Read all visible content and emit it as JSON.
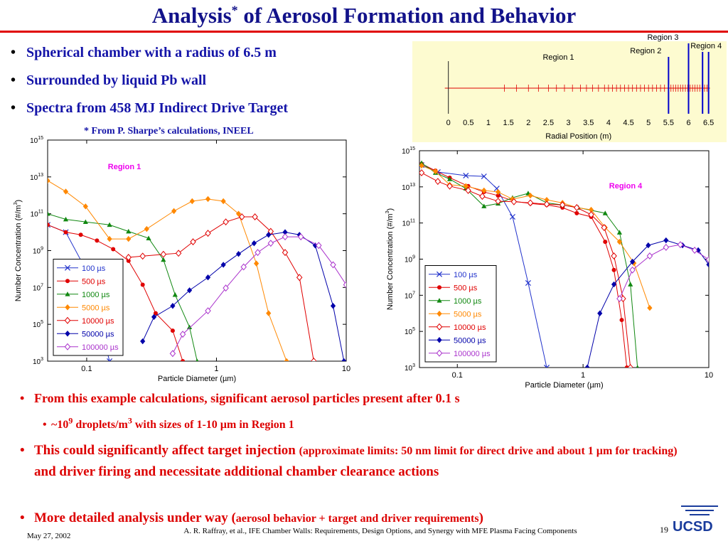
{
  "slide": {
    "title": [
      {
        "text": "Analysis"
      },
      {
        "text": "*",
        "sup": true
      },
      {
        "text": " of Aerosol Formation and Behavior"
      }
    ],
    "bullets": [
      "Spherical chamber with a radius of 6.5 m",
      "Surrounded by liquid Pb wall",
      "Spectra from 458 MJ Indirect Drive Target"
    ],
    "footnote": "* From P. Sharpe’s calculations, INEEL",
    "findings": [
      [
        {
          "text": "From this example calculations, significant aerosol particles present after 0.1 s"
        }
      ],
      [
        {
          "text": "~10"
        },
        {
          "text": "9",
          "sup": true
        },
        {
          "text": " droplets/m"
        },
        {
          "text": "3",
          "sup": true
        },
        {
          "text": " with sizes of 1-10 µm in Region 1"
        }
      ],
      [
        {
          "text": "This could significantly affect target injection "
        },
        {
          "text": "(approximate limits: 50 nm limit for direct drive and about 1 µm for tracking)",
          "small": true
        },
        {
          "text": " and driver firing and necessitate additional chamber clearance actions"
        }
      ],
      [
        {
          "text": "More detailed analysis under way ("
        },
        {
          "text": "aerosol behavior + target and driver requirements",
          "small": true
        },
        {
          "text": ")"
        }
      ]
    ],
    "date": "May 27, 2002",
    "citation": "A. R. Raffray, et al., IFE Chamber Walls: Requirements, Design Options, and Synergy with MFE Plasma Facing Components",
    "page": "19",
    "logo": "UCSD"
  },
  "chart_data": [
    {
      "type": "line",
      "annotation": "Region 1",
      "xlabel": "Particle Diameter (µm)",
      "ylabel": [
        {
          "text": "Number Concentration (#/m"
        },
        {
          "text": "3",
          "sup": true
        },
        {
          "text": ")"
        }
      ],
      "xscale": "log",
      "yscale": "log",
      "xlim": [
        0.05,
        10
      ],
      "ylim": [
        1000.0,
        1000000000000000.0
      ],
      "xticks": [
        0.1,
        1,
        10
      ],
      "yticks": [
        {
          "value": 1000.0,
          "label": "10",
          "sup": "3"
        },
        {
          "value": 100000.0,
          "label": "10",
          "sup": "5"
        },
        {
          "value": 10000000.0,
          "label": "10",
          "sup": "7"
        },
        {
          "value": 1000000000.0,
          "label": "10",
          "sup": "9"
        },
        {
          "value": 100000000000.0,
          "label": "10",
          "sup": "11"
        },
        {
          "value": 10000000000000.0,
          "label": "10",
          "sup": "13"
        },
        {
          "value": 1000000000000000.0,
          "label": "10",
          "sup": "15"
        }
      ],
      "legend": "lower left",
      "annotation_color": "#ee00ee",
      "series": [
        {
          "name": "100 µs",
          "color": "#2233cc",
          "marker": "x",
          "x": [
            0.05,
            0.069,
            0.098,
            0.15
          ],
          "values": [
            25000000000.0,
            10000000000.0,
            100000000.0,
            1000.0
          ]
        },
        {
          "name": "500 µs",
          "color": "#e00000",
          "marker": "circle",
          "x": [
            0.05,
            0.069,
            0.09,
            0.12,
            0.16,
            0.21,
            0.27,
            0.34,
            0.46,
            0.55
          ],
          "values": [
            25000000000.0,
            10000000000.0,
            7200000000.0,
            3500000000.0,
            1200000000.0,
            280000000.0,
            14000000.0,
            400000.0,
            45000.0,
            1000.0
          ]
        },
        {
          "name": "1000 µs",
          "color": "#118811",
          "marker": "triangle",
          "x": [
            0.05,
            0.069,
            0.098,
            0.15,
            0.21,
            0.3,
            0.39,
            0.48,
            0.62,
            0.71
          ],
          "values": [
            100000000000.0,
            50000000000.0,
            36000000000.0,
            25000000000.0,
            11000000000.0,
            4700000000.0,
            320000000.0,
            4000000.0,
            70000.0,
            1000.0
          ]
        },
        {
          "name": "5000 µs",
          "color": "#ff8800",
          "marker": "diamond",
          "x": [
            0.05,
            0.069,
            0.098,
            0.15,
            0.21,
            0.29,
            0.47,
            0.65,
            0.86,
            1.13,
            1.48,
            2.03,
            2.52,
            3.47
          ],
          "values": [
            6300000000000.0,
            1600000000000.0,
            250000000000.0,
            4300000000.0,
            4300000000.0,
            15000000000.0,
            140000000000.0,
            480000000000.0,
            630000000000.0,
            480000000000.0,
            100000000000.0,
            200000000.0,
            400000.0,
            1000.0
          ]
        },
        {
          "name": "10000 µs",
          "color": "#e00000",
          "marker": "diamond-open",
          "x": [
            0.21,
            0.27,
            0.39,
            0.51,
            0.66,
            0.86,
            1.18,
            1.57,
            1.98,
            2.62,
            3.38,
            4.36,
            5.62
          ],
          "values": [
            430000000.0,
            500000000.0,
            630000000.0,
            720000000.0,
            3000000000.0,
            8700000000.0,
            36000000000.0,
            68000000000.0,
            68000000000.0,
            11000000000.0,
            790000000.0,
            35000000.0,
            1000.0
          ]
        },
        {
          "name": "50000 µs",
          "color": "#0000aa",
          "marker": "diamond",
          "x": [
            0.27,
            0.33,
            0.46,
            0.62,
            0.86,
            1.13,
            1.48,
            1.95,
            2.52,
            3.38,
            4.36,
            5.77,
            7.92,
            9.6
          ],
          "values": [
            12000.0,
            250000.0,
            1000000.0,
            7000000.0,
            35000000.0,
            170000000.0,
            660000000.0,
            2500000000.0,
            7200000000.0,
            10000000000.0,
            7200000000.0,
            1900000000.0,
            1000000.0,
            1000.0
          ]
        },
        {
          "name": "100000 µs",
          "color": "#aa33cc",
          "marker": "diamond-open",
          "x": [
            0.46,
            0.55,
            0.86,
            1.18,
            1.62,
            2.08,
            2.62,
            3.38,
            4.47,
            6.14,
            7.92,
            10
          ],
          "values": [
            2600.0,
            29000.0,
            540000.0,
            9300000.0,
            130000000.0,
            790000000.0,
            2500000000.0,
            5600000000.0,
            5600000000.0,
            1900000000.0,
            170000000.0,
            14000000.0
          ]
        }
      ]
    },
    {
      "type": "line",
      "annotation": "Region 4",
      "xlabel": "Particle Diameter (µm)",
      "ylabel": [
        {
          "text": "Number Concentration (#/m"
        },
        {
          "text": "3",
          "sup": true
        },
        {
          "text": ")"
        }
      ],
      "xscale": "log",
      "yscale": "log",
      "xlim": [
        0.05,
        10
      ],
      "ylim": [
        1000.0,
        1000000000000000.0
      ],
      "xticks": [
        0.1,
        1,
        10
      ],
      "yticks": [
        {
          "value": 1000.0,
          "label": "10",
          "sup": "3"
        },
        {
          "value": 100000.0,
          "label": "10",
          "sup": "5"
        },
        {
          "value": 10000000.0,
          "label": "10",
          "sup": "7"
        },
        {
          "value": 1000000000.0,
          "label": "10",
          "sup": "9"
        },
        {
          "value": 100000000000.0,
          "label": "10",
          "sup": "11"
        },
        {
          "value": 10000000000000.0,
          "label": "10",
          "sup": "13"
        },
        {
          "value": 1000000000000000.0,
          "label": "10",
          "sup": "15"
        }
      ],
      "legend": "lower left",
      "annotation_color": "#ee00ee",
      "series": [
        {
          "name": "100 µs",
          "color": "#2233cc",
          "marker": "x",
          "x": [
            0.052,
            0.07,
            0.117,
            0.163,
            0.206,
            0.275,
            0.366,
            0.514
          ],
          "values": [
            160000000000000.0,
            66000000000000.0,
            42000000000000.0,
            38000000000000.0,
            8100000000000.0,
            220000000000.0,
            48000000.0,
            1000.0
          ]
        },
        {
          "name": "500 µs",
          "color": "#e00000",
          "marker": "circle",
          "x": [
            0.052,
            0.067,
            0.087,
            0.122,
            0.163,
            0.211,
            0.282,
            0.381,
            0.514,
            0.686,
            0.891,
            1.16,
            1.5,
            1.76,
            2.03,
            2.23
          ],
          "values": [
            190000000000000.0,
            79000000000000.0,
            32000000000000.0,
            11000000000000.0,
            5200000000000.0,
            3300000000000.0,
            1600000000000.0,
            1200000000000.0,
            1000000000000.0,
            710000000000.0,
            350000000000.0,
            220000000000.0,
            9100000000.0,
            250000000.0,
            430000.0,
            1000.0
          ]
        },
        {
          "name": "1000 µs",
          "color": "#118811",
          "marker": "triangle",
          "x": [
            0.052,
            0.067,
            0.087,
            0.117,
            0.163,
            0.211,
            0.275,
            0.366,
            0.514,
            0.686,
            0.914,
            1.5,
            1.95,
            2.38,
            2.71
          ],
          "values": [
            210000000000000.0,
            60000000000000.0,
            27000000000000.0,
            8100000000000.0,
            850000000000.0,
            1200000000000.0,
            2500000000000.0,
            4400000000000.0,
            1300000000000.0,
            1000000000000.0,
            710000000000.0,
            350000000000.0,
            30000000000.0,
            40000000.0,
            1000.0
          ]
        },
        {
          "name": "5000 µs",
          "color": "#ff8800",
          "marker": "diamond",
          "x": [
            0.052,
            0.067,
            0.087,
            0.117,
            0.163,
            0.211,
            0.275,
            0.381,
            0.514,
            0.686,
            0.891,
            1.16,
            1.5,
            1.95,
            2.54,
            3.39
          ],
          "values": [
            150000000000000.0,
            72000000000000.0,
            13000000000000.0,
            11000000000000.0,
            6300000000000.0,
            5200000000000.0,
            2100000000000.0,
            3300000000000.0,
            1900000000000.0,
            1300000000000.0,
            710000000000.0,
            540000000000.0,
            56000000000.0,
            9100000000.0,
            600000000.0,
            2000000.0
          ]
        },
        {
          "name": "10000 µs",
          "color": "#e00000",
          "marker": "diamond-open",
          "x": [
            0.052,
            0.07,
            0.087,
            0.122,
            0.158,
            0.211,
            0.282,
            0.381,
            0.514,
            0.686,
            0.891,
            1.16,
            1.47,
            1.76,
            2.08,
            2.38
          ],
          "values": [
            60000000000000.0,
            20000000000000.0,
            11000000000000.0,
            6300000000000.0,
            3000000000000.0,
            1600000000000.0,
            1500000000000.0,
            1300000000000.0,
            1100000000000.0,
            1000000000000.0,
            710000000000.0,
            290000000000.0,
            56000000000.0,
            1500000000.0,
            6500000.0,
            1000.0
          ]
        },
        {
          "name": "50000 µs",
          "color": "#0000aa",
          "marker": "diamond",
          "x": [
            1.08,
            1.36,
            1.76,
            2.47,
            3.3,
            4.57,
            6.18,
            8.24,
            10
          ],
          "values": [
            1000.0,
            1000000.0,
            40000000.0,
            720000000.0,
            5800000000.0,
            11000000000.0,
            5800000000.0,
            3100000000.0,
            500000000.0
          ]
        },
        {
          "name": "100000 µs",
          "color": "#aa33cc",
          "marker": "diamond-open",
          "x": [
            1.95,
            2.47,
            3.39,
            4.57,
            5.94,
            7.72,
            10
          ],
          "values": [
            6500000.0,
            250000000.0,
            1500000000.0,
            4500000000.0,
            6300000000.0,
            3100000000.0,
            950000000.0
          ]
        }
      ]
    },
    {
      "type": "mesh",
      "xlabel": "Radial Position (m)",
      "xlim": [
        -0.9,
        6.95
      ],
      "xticks": [
        0,
        0.5,
        1,
        1.5,
        2,
        2.5,
        3,
        3.5,
        4,
        4.5,
        5,
        5.5,
        6,
        6.5
      ],
      "background": "#fdfbd0",
      "mesh_color": "#e00000",
      "region_color": "#0000cc",
      "mesh": [
        1.4,
        1.7,
        2,
        2.25,
        2.5,
        2.7,
        2.9,
        3.1,
        3.3,
        3.45,
        3.6,
        3.75,
        3.9,
        4,
        4.1,
        4.2,
        4.3,
        4.4,
        4.5,
        4.6,
        4.7,
        4.8,
        4.9,
        5,
        5.1,
        5.2,
        5.3,
        5.4,
        5.5,
        5.56,
        5.62,
        5.68,
        5.74,
        5.8,
        5.86,
        5.92,
        5.98,
        6.04,
        6.1,
        6.16,
        6.22,
        6.28,
        6.34,
        6.4,
        6.46,
        6.5
      ],
      "regions": [
        {
          "name": "Region 1",
          "start": 0,
          "end": 5.5
        },
        {
          "name": "Region 2",
          "start": 5.5,
          "end": 6
        },
        {
          "name": "Region 3",
          "start": 6,
          "end": 6.35
        },
        {
          "name": "Region 4",
          "start": 6.35,
          "end": 6.5
        }
      ]
    }
  ]
}
